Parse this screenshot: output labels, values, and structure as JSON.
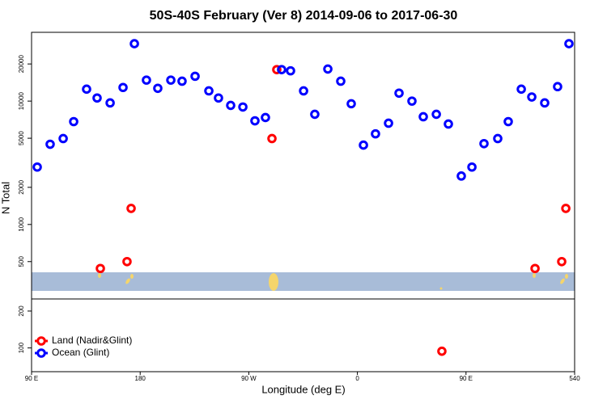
{
  "chart_data": [
    {
      "type": "scatter",
      "title": "50S-40S February (Ver 8)   2014-09-06 to 2017-06-30",
      "ylabel": "N Total",
      "log_y": true,
      "xlim": [
        90,
        540
      ],
      "ylim": [
        249,
        36100
      ],
      "yticks": [
        500,
        1000,
        2000,
        5000,
        10000,
        20000
      ],
      "series": [
        {
          "color": "#ff0000",
          "x": [
            147.0,
            169.1,
            172.5,
            289.2,
            293.2,
            507.2,
            529.3,
            532.7
          ],
          "values": [
            440,
            500,
            1350,
            4970,
            18000,
            440,
            500,
            1350
          ]
        },
        {
          "color": "#0000ff",
          "x": [
            94.7,
            105.4,
            116.2,
            124.9,
            135.6,
            144.3,
            155.1,
            165.8,
            175.2,
            185.2,
            194.6,
            205.4,
            214.7,
            225.5,
            236.9,
            244.9,
            255.0,
            265.1,
            275.1,
            283.8,
            297.2,
            304.6,
            315.4,
            324.7,
            335.5,
            346.2,
            354.9,
            365.0,
            375.0,
            385.8,
            394.5,
            405.2,
            414.6,
            425.4,
            435.4,
            446.1,
            454.9,
            464.9,
            476.3,
            485.0,
            495.8,
            504.5,
            515.2,
            525.9,
            535.3
          ],
          "values": [
            2920,
            4470,
            4970,
            6820,
            12500,
            10600,
            9670,
            12900,
            29200,
            14800,
            12700,
            14800,
            14500,
            15900,
            12100,
            10600,
            9230,
            8960,
            6920,
            7360,
            18000,
            17600,
            12100,
            7820,
            18200,
            14500,
            9520,
            4400,
            5430,
            6620,
            11600,
            10000,
            7470,
            7820,
            6520,
            2470,
            2920,
            4520,
            4970,
            6820,
            12500,
            10800,
            9670,
            13100,
            29200
          ]
        }
      ]
    },
    {
      "type": "scatter",
      "xlabel": "Longitude (deg E)",
      "log_y": true,
      "legend": "lower left",
      "xlim": [
        90,
        540
      ],
      "xticks": [
        {
          "value": 90,
          "label": "90 E"
        },
        180,
        {
          "value": 270,
          "label": "90 W"
        },
        {
          "value": 360,
          "label": "0"
        },
        {
          "value": 450,
          "label": "90 E"
        },
        540
      ],
      "ylim": [
        64,
        251
      ],
      "yticks": [
        100,
        200
      ],
      "series": [
        {
          "name": "Land (Nadir&Glint)",
          "color": "#ff0000",
          "x": [
            430.0
          ],
          "values": [
            94
          ]
        },
        {
          "name": "Ocean (Glint)",
          "color": "#0000ff",
          "x": [],
          "values": []
        }
      ]
    }
  ]
}
